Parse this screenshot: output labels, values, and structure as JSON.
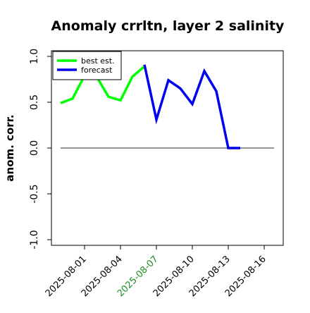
{
  "chart_data": {
    "type": "line",
    "title": "Anomaly crrltn, layer 2 salinity",
    "xlabel": "",
    "ylabel": "anom. corr.",
    "ylim": [
      -1.0,
      1.0
    ],
    "yticks": [
      "-1.0",
      "-0.5",
      "0.0",
      "0.5",
      "1.0"
    ],
    "xticks": [
      "2025-08-01",
      "2025-08-04",
      "2025-08-07",
      "2025-08-10",
      "2025-08-13",
      "2025-08-16"
    ],
    "highlight_tick": "2025-08-07",
    "highlight_color": "#228B22",
    "reference_line": 0,
    "legend_position": "top-left",
    "grid": false,
    "series": [
      {
        "name": "best est.",
        "color": "#00ff00",
        "points": [
          {
            "x": "2025-07-30",
            "y": 0.49
          },
          {
            "x": "2025-07-31",
            "y": 0.54
          },
          {
            "x": "2025-08-01",
            "y": 0.79
          },
          {
            "x": "2025-08-02",
            "y": 0.78
          },
          {
            "x": "2025-08-03",
            "y": 0.56
          },
          {
            "x": "2025-08-04",
            "y": 0.52
          },
          {
            "x": "2025-08-05",
            "y": 0.78
          },
          {
            "x": "2025-08-06",
            "y": 0.89
          }
        ]
      },
      {
        "name": "forecast",
        "color": "#0000ee",
        "points": [
          {
            "x": "2025-08-06",
            "y": 0.91
          },
          {
            "x": "2025-08-07",
            "y": 0.31
          },
          {
            "x": "2025-08-08",
            "y": 0.74
          },
          {
            "x": "2025-08-09",
            "y": 0.65
          },
          {
            "x": "2025-08-10",
            "y": 0.48
          },
          {
            "x": "2025-08-11",
            "y": 0.84
          },
          {
            "x": "2025-08-12",
            "y": 0.62
          },
          {
            "x": "2025-08-13",
            "y": 0.0
          },
          {
            "x": "2025-08-14",
            "y": 0.0
          }
        ]
      }
    ]
  }
}
